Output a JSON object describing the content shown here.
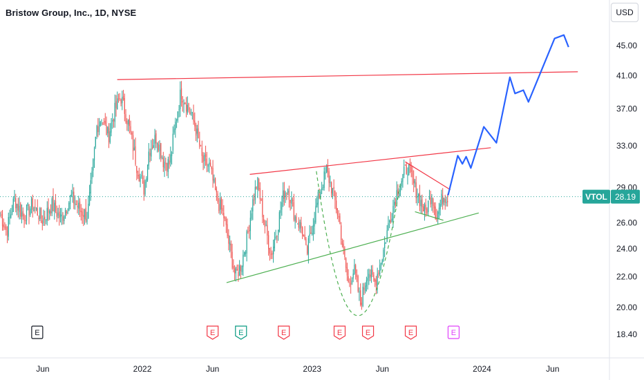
{
  "header": {
    "title": "Bristow Group, Inc., 1D, NYSE",
    "currency": "USD"
  },
  "price_tag": {
    "symbol": "VTOL",
    "price": "28.19",
    "price_value": 28.19,
    "bg_color": "#26a69a"
  },
  "colors": {
    "up": "#26a69a",
    "down": "#ef5350",
    "resistance": "#f23645",
    "support": "#4caf50",
    "projection": "#2962ff",
    "earnings_red": "#f23645",
    "earnings_green": "#089981",
    "earnings_magenta": "#e040fb"
  },
  "chart_data": {
    "type": "candlestick",
    "title": "Bristow Group, Inc., 1D, NYSE",
    "y_axis": {
      "ticks": [
        18.4,
        20.0,
        22.0,
        24.0,
        26.0,
        29.0,
        33.0,
        37.0,
        41.0,
        45.0
      ],
      "tick_labels": [
        "18.40",
        "20.00",
        "22.00",
        "24.00",
        "26.00",
        "29.00",
        "33.00",
        "37.00",
        "41.00",
        "45.00"
      ],
      "scale": "log",
      "range": [
        17.2,
        49.5
      ]
    },
    "x_axis": {
      "labels": [
        "Jun",
        "2022",
        "Jun",
        "2023",
        "Jun",
        "2024",
        "Jun"
      ],
      "dates": [
        "2021-06-01",
        "2022-01-01",
        "2022-06-01",
        "2023-01-01",
        "2023-06-01",
        "2024-01-01",
        "2024-06-01"
      ],
      "range": [
        "2021-03-01",
        "2024-10-01"
      ]
    },
    "price_keypoints": [
      [
        "2021-03-01",
        26.8
      ],
      [
        "2021-03-15",
        25.3
      ],
      [
        "2021-04-01",
        28.0
      ],
      [
        "2021-04-20",
        26.5
      ],
      [
        "2021-05-10",
        27.5
      ],
      [
        "2021-06-01",
        26.2
      ],
      [
        "2021-06-20",
        27.5
      ],
      [
        "2021-07-10",
        26.3
      ],
      [
        "2021-08-01",
        28.2
      ],
      [
        "2021-08-20",
        27.0
      ],
      [
        "2021-09-05",
        26.6
      ],
      [
        "2021-09-15",
        30.0
      ],
      [
        "2021-09-25",
        35.0
      ],
      [
        "2021-10-05",
        36.0
      ],
      [
        "2021-10-20",
        34.0
      ],
      [
        "2021-11-01",
        36.5
      ],
      [
        "2021-11-15",
        38.5
      ],
      [
        "2021-12-01",
        35.5
      ],
      [
        "2021-12-20",
        31.0
      ],
      [
        "2022-01-05",
        28.8
      ],
      [
        "2022-01-15",
        32.5
      ],
      [
        "2022-02-01",
        34.0
      ],
      [
        "2022-02-15",
        31.5
      ],
      [
        "2022-03-01",
        31.2
      ],
      [
        "2022-03-15",
        36.0
      ],
      [
        "2022-03-25",
        39.0
      ],
      [
        "2022-04-10",
        37.0
      ],
      [
        "2022-04-25",
        35.0
      ],
      [
        "2022-05-10",
        31.5
      ],
      [
        "2022-05-25",
        31.0
      ],
      [
        "2022-06-10",
        28.0
      ],
      [
        "2022-06-25",
        26.5
      ],
      [
        "2022-07-05",
        24.5
      ],
      [
        "2022-07-20",
        22.0
      ],
      [
        "2022-08-01",
        22.8
      ],
      [
        "2022-08-15",
        25.0
      ],
      [
        "2022-08-25",
        27.5
      ],
      [
        "2022-09-05",
        29.5
      ],
      [
        "2022-09-20",
        26.0
      ],
      [
        "2022-10-05",
        23.5
      ],
      [
        "2022-10-20",
        26.0
      ],
      [
        "2022-11-01",
        28.5
      ],
      [
        "2022-11-10",
        29.0
      ],
      [
        "2022-11-25",
        26.5
      ],
      [
        "2022-12-10",
        25.5
      ],
      [
        "2022-12-20",
        23.5
      ],
      [
        "2023-01-05",
        26.5
      ],
      [
        "2023-01-20",
        29.0
      ],
      [
        "2023-02-01",
        30.5
      ],
      [
        "2023-02-15",
        28.5
      ],
      [
        "2023-03-01",
        26.0
      ],
      [
        "2023-03-10",
        23.5
      ],
      [
        "2023-03-20",
        21.5
      ],
      [
        "2023-04-01",
        22.5
      ],
      [
        "2023-04-15",
        20.2
      ],
      [
        "2023-05-01",
        22.5
      ],
      [
        "2023-05-15",
        21.5
      ],
      [
        "2023-06-01",
        23.5
      ],
      [
        "2023-06-15",
        26.0
      ],
      [
        "2023-07-01",
        28.5
      ],
      [
        "2023-07-15",
        30.0
      ],
      [
        "2023-07-25",
        31.0
      ],
      [
        "2023-08-05",
        29.5
      ],
      [
        "2023-08-20",
        28.0
      ],
      [
        "2023-09-01",
        26.8
      ],
      [
        "2023-09-15",
        28.5
      ],
      [
        "2023-09-25",
        26.5
      ],
      [
        "2023-10-10",
        28.3
      ],
      [
        "2023-10-20",
        28.2
      ]
    ],
    "annotations": {
      "resistance_upper": [
        [
          "2021-11-08",
          40.5
        ],
        [
          "2024-07-25",
          41.5
        ]
      ],
      "resistance_mid": [
        [
          "2022-08-20",
          30.2
        ],
        [
          "2024-01-20",
          32.8
        ]
      ],
      "support_lower": [
        [
          "2022-07-01",
          21.6
        ],
        [
          "2023-12-25",
          26.8
        ]
      ],
      "triangle_upper": [
        [
          "2023-07-20",
          31.4
        ],
        [
          "2023-10-25",
          28.8
        ]
      ],
      "triangle_lower": [
        [
          "2023-08-10",
          26.9
        ],
        [
          "2023-10-10",
          26.2
        ]
      ],
      "cup_curve": [
        [
          "2023-01-10",
          30.5
        ],
        [
          "2023-04-05",
          19.5
        ],
        [
          "2023-07-10",
          29.5
        ]
      ],
      "projection": [
        [
          "2023-10-20",
          28.3
        ],
        [
          "2023-11-10",
          32.0
        ],
        [
          "2023-11-20",
          31.2
        ],
        [
          "2023-11-28",
          31.9
        ],
        [
          "2023-12-08",
          30.8
        ],
        [
          "2024-01-05",
          35.0
        ],
        [
          "2024-02-01",
          33.3
        ],
        [
          "2024-03-01",
          40.8
        ],
        [
          "2024-03-12",
          38.8
        ],
        [
          "2024-03-30",
          39.2
        ],
        [
          "2024-04-10",
          37.8
        ],
        [
          "2024-06-05",
          46.0
        ],
        [
          "2024-06-25",
          46.5
        ],
        [
          "2024-07-05",
          44.8
        ]
      ]
    },
    "earnings_markers": [
      {
        "date": "2021-05-20",
        "label": "E",
        "kind": "neutral"
      },
      {
        "date": "2022-06-01",
        "label": "E",
        "kind": "miss"
      },
      {
        "date": "2022-08-01",
        "label": "E",
        "kind": "beat"
      },
      {
        "date": "2022-11-01",
        "label": "E",
        "kind": "miss"
      },
      {
        "date": "2023-03-01",
        "label": "E",
        "kind": "miss"
      },
      {
        "date": "2023-05-01",
        "label": "E",
        "kind": "miss"
      },
      {
        "date": "2023-08-01",
        "label": "E",
        "kind": "miss"
      },
      {
        "date": "2023-11-01",
        "label": "E",
        "kind": "upcoming"
      }
    ],
    "current_price": 28.19
  }
}
